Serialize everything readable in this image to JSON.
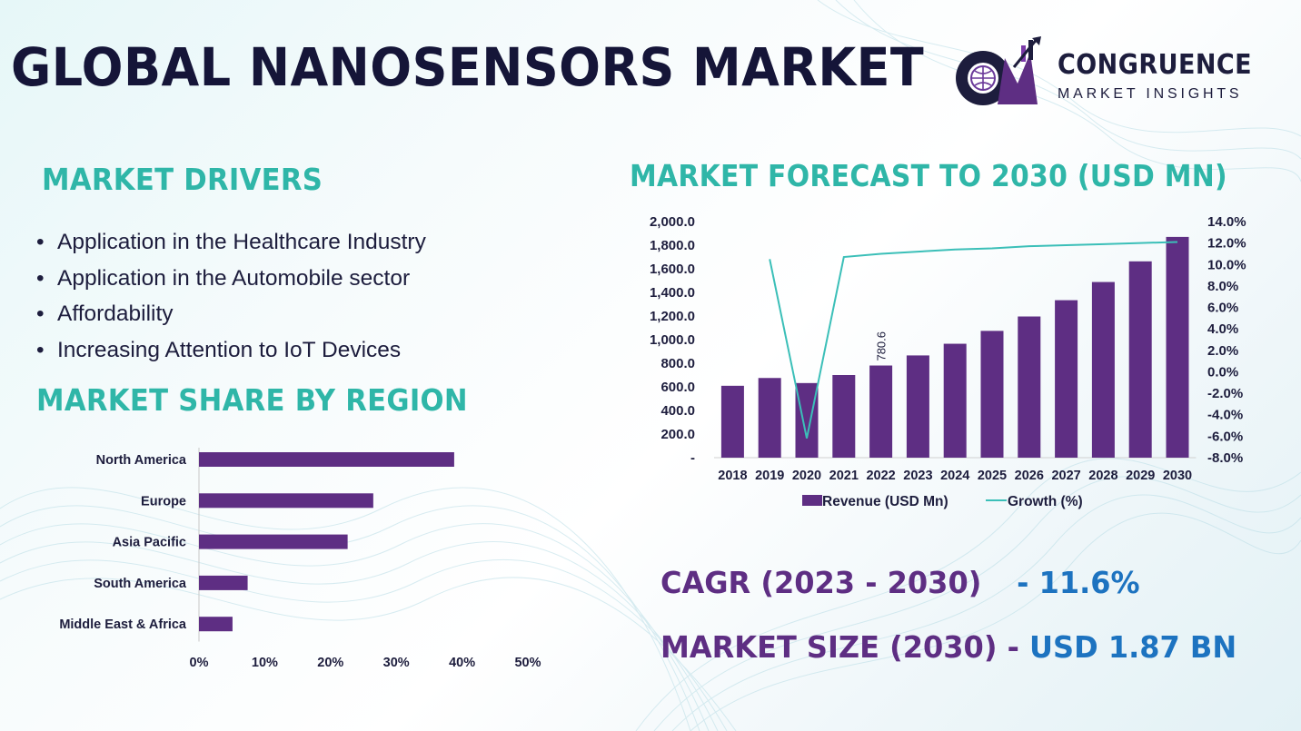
{
  "title": "GLOBAL NANOSENSORS MARKET",
  "logo": {
    "name": "CONGRUENCE",
    "subtitle": "MARKET INSIGHTS"
  },
  "drivers": {
    "heading": "MARKET DRIVERS",
    "items": [
      "Application in the Healthcare Industry",
      "Application in the Automobile sector",
      "Affordability",
      "Increasing Attention to IoT Devices"
    ]
  },
  "region_heading": "MARKET SHARE BY REGION",
  "forecast_heading": "MARKET FORECAST TO 2030 (USD MN)",
  "kpis": {
    "cagr_label": "CAGR (2023 - 2030)",
    "cagr_value": "- 11.6%",
    "size_label": "MARKET SIZE (2030) -",
    "size_value": "USD 1.87 BN"
  },
  "colors": {
    "accent_teal": "#2fb6a8",
    "bar_purple": "#5e2e83",
    "line_teal": "#3bbfb8",
    "value_blue": "#1d73c0",
    "dark": "#151538"
  },
  "chart_data": [
    {
      "type": "bar",
      "orientation": "horizontal",
      "title": "",
      "categories": [
        "North America",
        "Europe",
        "Asia Pacific",
        "South America",
        "Middle East & Africa"
      ],
      "values": [
        38.8,
        26.5,
        22.6,
        7.4,
        5.1
      ],
      "xlim": [
        0,
        50
      ],
      "x_ticks": [
        "0%",
        "10%",
        "20%",
        "30%",
        "40%",
        "50%"
      ],
      "xlabel": "",
      "ylabel": ""
    },
    {
      "type": "bar+line",
      "categories": [
        "2018",
        "2019",
        "2020",
        "2021",
        "2022",
        "2023",
        "2024",
        "2025",
        "2026",
        "2027",
        "2028",
        "2029",
        "2030"
      ],
      "series": [
        {
          "name": "Revenue (USD Mn)",
          "type": "bar",
          "axis": "left",
          "values": [
            609,
            675,
            632,
            700,
            780.6,
            866,
            965,
            1074,
            1196,
            1334,
            1488,
            1663,
            1870
          ]
        },
        {
          "name": "Growth (%)",
          "type": "line",
          "axis": "right",
          "values": [
            null,
            10.5,
            -6.2,
            10.7,
            11.0,
            11.2,
            11.4,
            11.5,
            11.7,
            11.8,
            11.9,
            12.0,
            12.1
          ]
        }
      ],
      "data_labels": [
        {
          "category": "2022",
          "text": "780.6"
        }
      ],
      "left_axis": {
        "min": 0,
        "max": 2000,
        "ticks": [
          "-",
          "200.0",
          "400.0",
          "600.0",
          "800.0",
          "1,000.0",
          "1,200.0",
          "1,400.0",
          "1,600.0",
          "1,800.0",
          "2,000.0"
        ]
      },
      "right_axis": {
        "min": -8,
        "max": 14,
        "ticks": [
          "-8.0%",
          "-6.0%",
          "-4.0%",
          "-2.0%",
          "0.0%",
          "2.0%",
          "4.0%",
          "6.0%",
          "8.0%",
          "10.0%",
          "12.0%",
          "14.0%"
        ]
      },
      "legend": [
        "Revenue (USD Mn)",
        "Growth (%)"
      ],
      "legend_position": "bottom"
    }
  ]
}
